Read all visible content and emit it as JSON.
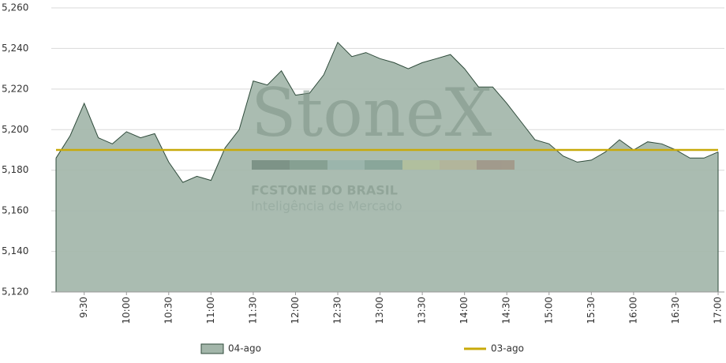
{
  "chart_data": {
    "type": "area",
    "watermark": {
      "brand": "StoneX",
      "company": "FCSTONE DO BRASIL",
      "tagline": "Inteligência de Mercado"
    },
    "categories": [
      null,
      null,
      "9:30",
      null,
      null,
      "10:00",
      null,
      null,
      "10:30",
      null,
      null,
      "11:00",
      null,
      null,
      "11:30",
      null,
      null,
      "12:00",
      null,
      null,
      "12:30",
      null,
      null,
      "13:00",
      null,
      null,
      "13:30",
      null,
      null,
      "14:00",
      null,
      null,
      "14:30",
      null,
      null,
      "15:00",
      null,
      null,
      "15:30",
      null,
      null,
      "16:00",
      null,
      null,
      "16:30",
      null,
      null,
      "17:00"
    ],
    "series": [
      {
        "name": "04-ago",
        "type": "area",
        "color": "#a3b6aa",
        "stroke": "#2f4b3b",
        "values": [
          5186,
          5197,
          5213,
          5196,
          5193,
          5199,
          5196,
          5198,
          5184,
          5174,
          5177,
          5175,
          5191,
          5200,
          5224,
          5222,
          5229,
          5217,
          5218,
          5227,
          5243,
          5236,
          5238,
          5235,
          5233,
          5230,
          5233,
          5235,
          5237,
          5230,
          5221,
          5221,
          5213,
          5204,
          5195,
          5193,
          5187,
          5184,
          5185,
          5189,
          5195,
          5190,
          5194,
          5193,
          5190,
          5186,
          5186,
          5189
        ]
      },
      {
        "name": "03-ago",
        "type": "line",
        "color": "#c8aa0a",
        "values": [
          5190,
          5190,
          5190,
          5190,
          5190,
          5190,
          5190,
          5190,
          5190,
          5190,
          5190,
          5190,
          5190,
          5190,
          5190,
          5190,
          5190,
          5190,
          5190,
          5190,
          5190,
          5190,
          5190,
          5190,
          5190,
          5190,
          5190,
          5190,
          5190,
          5190,
          5190,
          5190,
          5190,
          5190,
          5190,
          5190,
          5190,
          5190,
          5190,
          5190,
          5190,
          5190,
          5190,
          5190,
          5190,
          5190,
          5190,
          5190
        ]
      }
    ],
    "ylim": [
      5120,
      5260
    ],
    "yticks": [
      {
        "value": 5120,
        "label": "5,120"
      },
      {
        "value": 5140,
        "label": "5,140"
      },
      {
        "value": 5160,
        "label": "5,160"
      },
      {
        "value": 5180,
        "label": "5,180"
      },
      {
        "value": 5200,
        "label": "5,200"
      },
      {
        "value": 5220,
        "label": "5,220"
      },
      {
        "value": 5240,
        "label": "5,240"
      },
      {
        "value": 5260,
        "label": "5,260"
      }
    ],
    "grid": true,
    "legend": "bottom"
  }
}
